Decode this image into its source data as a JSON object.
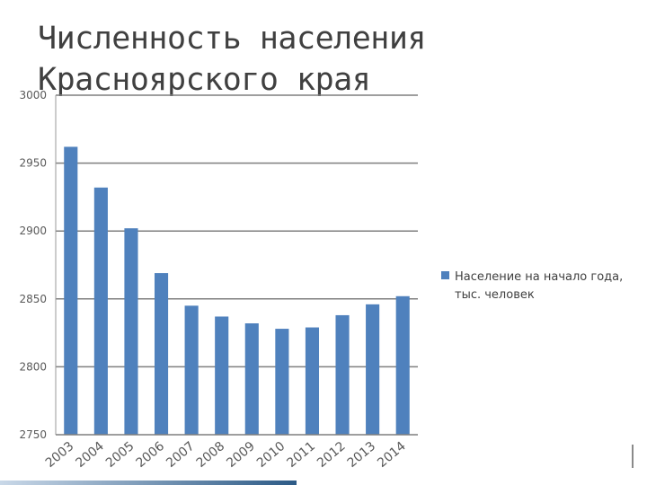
{
  "chart_data": {
    "type": "bar",
    "title": [
      "Численность населения",
      "Красноярского края"
    ],
    "categories": [
      "2003",
      "2004",
      "2005",
      "2006",
      "2007",
      "2008",
      "2009",
      "2010",
      "2011",
      "2012",
      "2013",
      "2014"
    ],
    "series": [
      {
        "name": "Население на начало года, тыс. человек",
        "values": [
          2962,
          2932,
          2902,
          2869,
          2845,
          2837,
          2832,
          2828,
          2829,
          2838,
          2846,
          2852
        ]
      }
    ],
    "legend_lines": [
      "Население на начало года,",
      "тыс. человек"
    ],
    "yticks": [
      "2750",
      "2800",
      "2850",
      "2900",
      "2950",
      "3000"
    ],
    "ylim": [
      2750,
      3000
    ],
    "xlabel": "",
    "ylabel": "",
    "grid": true,
    "legend_position": "right",
    "bar_color": "#4f81bd",
    "grid_color": "#7f7f7f"
  }
}
